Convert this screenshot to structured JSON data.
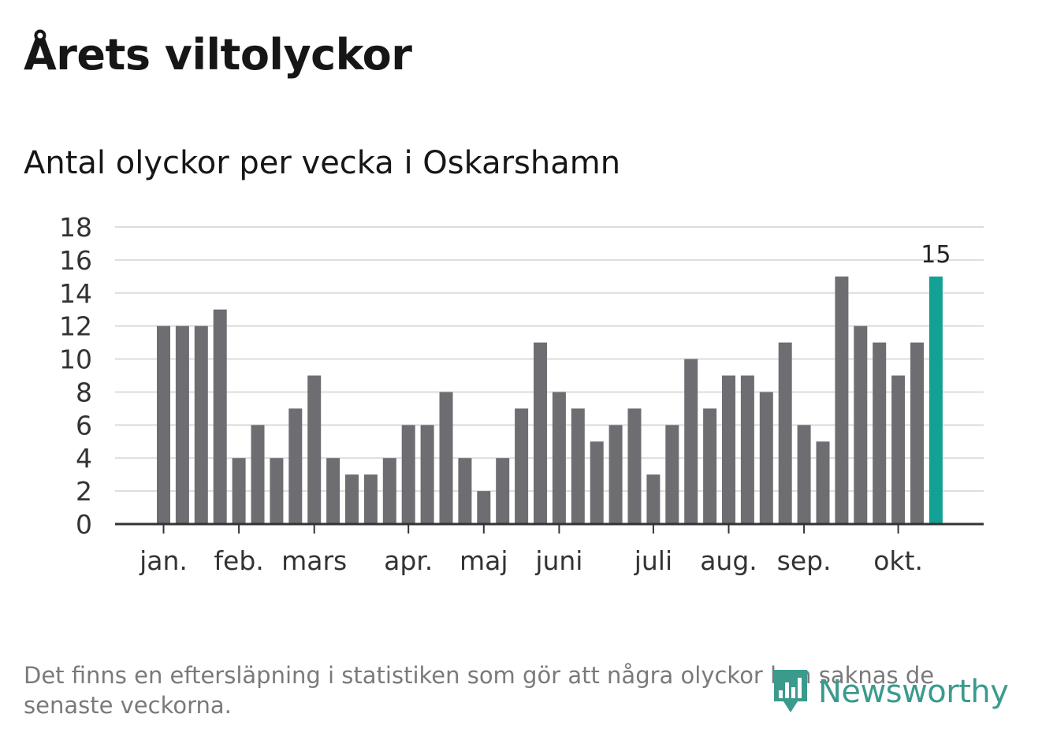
{
  "header": {
    "title": "Årets viltolyckor",
    "subtitle": "Antal olyckor per vecka i Oskarshamn"
  },
  "footer": {
    "note": "Det finns en eftersläpning i statistiken som gör att några olyckor kan saknas de senaste veckorna.",
    "brand": "Newsworthy"
  },
  "colors": {
    "bar": "#6e6d72",
    "highlight": "#14a195",
    "grid": "#dcdcdc",
    "axis": "#333333",
    "brand": "#3a9b8c"
  },
  "chart_data": {
    "type": "bar",
    "title": "Årets viltolyckor",
    "subtitle": "Antal olyckor per vecka i Oskarshamn",
    "values": [
      12,
      12,
      12,
      13,
      4,
      6,
      4,
      7,
      9,
      4,
      3,
      3,
      4,
      6,
      6,
      8,
      4,
      2,
      4,
      7,
      11,
      8,
      7,
      5,
      6,
      7,
      3,
      6,
      10,
      7,
      9,
      9,
      8,
      11,
      6,
      5,
      15,
      12,
      11,
      9,
      11,
      15
    ],
    "highlight_index": 41,
    "highlight_label": "15",
    "ylim": [
      0,
      18
    ],
    "yticks": [
      "0",
      "2",
      "4",
      "6",
      "8",
      "10",
      "12",
      "14",
      "16",
      "18"
    ],
    "month_labels": [
      {
        "label": "jan.",
        "bar": 0
      },
      {
        "label": "feb.",
        "bar": 4
      },
      {
        "label": "mars",
        "bar": 8
      },
      {
        "label": "apr.",
        "bar": 13
      },
      {
        "label": "maj",
        "bar": 17
      },
      {
        "label": "juni",
        "bar": 21
      },
      {
        "label": "juli",
        "bar": 26
      },
      {
        "label": "aug.",
        "bar": 30
      },
      {
        "label": "sep.",
        "bar": 34
      },
      {
        "label": "okt.",
        "bar": 39
      }
    ],
    "grid": true,
    "legend": "none"
  }
}
